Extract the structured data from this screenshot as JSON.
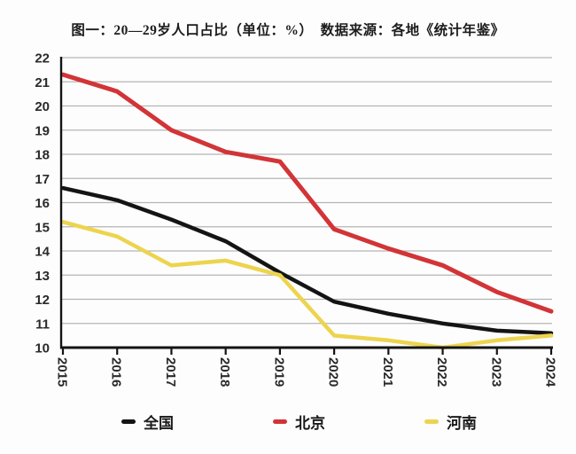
{
  "title": "图一：20—29岁人口占比（单位：%）　数据来源：各地《统计年鉴》",
  "colors": {
    "national": "#141414",
    "beijing": "#d23437",
    "henan": "#edd44e",
    "grid": "#b5b5b5",
    "axis": "#141414",
    "tick_text": "#2a2a2a"
  },
  "chart_data": {
    "type": "line",
    "title": "图一：20—29岁人口占比（单位：%） 数据来源：各地《统计年鉴》",
    "x": [
      2015,
      2016,
      2017,
      2018,
      2019,
      2020,
      2021,
      2022,
      2023,
      2024
    ],
    "series": [
      {
        "key": "national",
        "name": "全国",
        "color": "#141414",
        "values": [
          16.6,
          16.1,
          15.3,
          14.4,
          13.1,
          11.9,
          11.4,
          11.0,
          10.7,
          10.6
        ]
      },
      {
        "key": "beijing",
        "name": "北京",
        "color": "#d23437",
        "values": [
          21.3,
          20.6,
          19.0,
          18.1,
          17.7,
          14.9,
          14.1,
          13.4,
          12.3,
          11.5
        ]
      },
      {
        "key": "henan",
        "name": "河南",
        "color": "#edd44e",
        "values": [
          15.2,
          14.6,
          13.4,
          13.6,
          13.0,
          10.5,
          10.3,
          10.0,
          10.3,
          10.5
        ]
      }
    ],
    "ylim": [
      10,
      22
    ],
    "ytick_step": 1,
    "yticks": [
      10,
      11,
      12,
      13,
      14,
      15,
      16,
      17,
      18,
      19,
      20,
      21,
      22
    ],
    "grid": true,
    "legend_position": "bottom",
    "x_label_rotation_deg": 90
  },
  "legend": {
    "items": [
      {
        "label": "全国",
        "key": "national"
      },
      {
        "label": "北京",
        "key": "beijing"
      },
      {
        "label": "河南",
        "key": "henan"
      }
    ]
  }
}
